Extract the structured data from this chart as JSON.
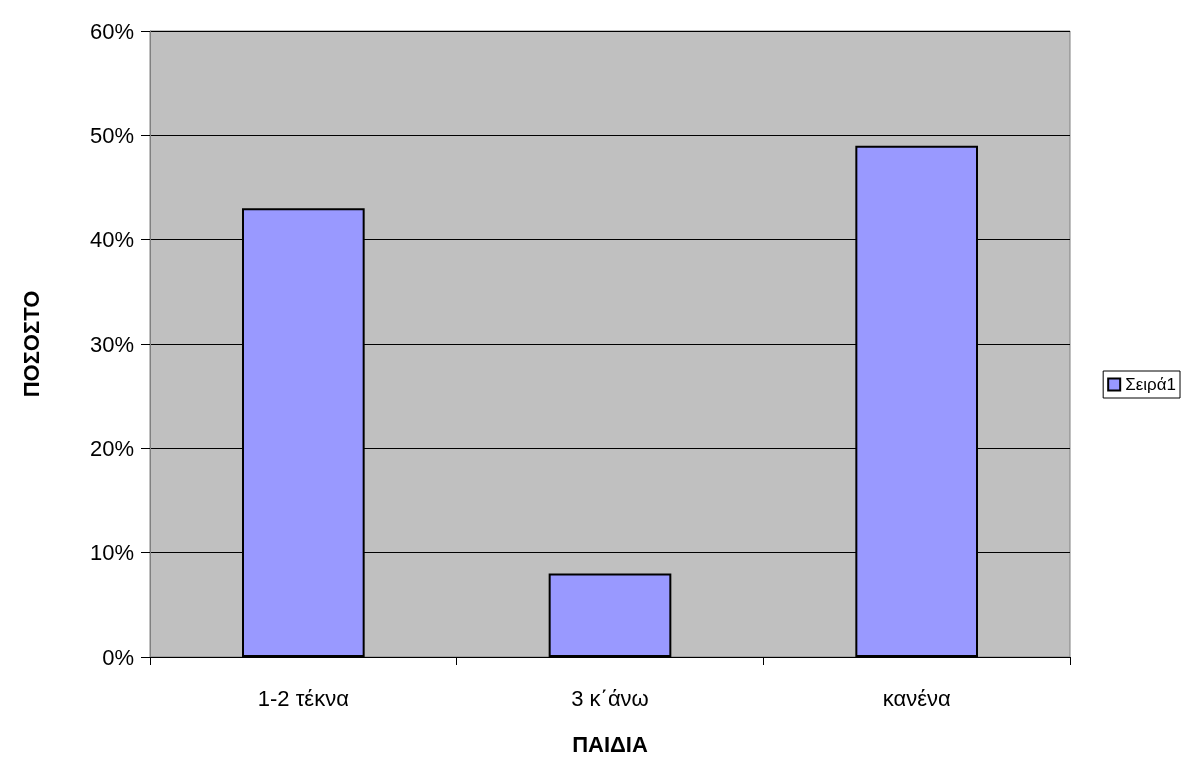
{
  "chart_data": {
    "type": "bar",
    "xlabel": "ΠΑΙΔΙΑ",
    "ylabel": "ΠΟΣΟΣΤΟ",
    "categories": [
      "1-2 τέκνα",
      "3 κ΄άνω",
      "κανένα"
    ],
    "series": [
      {
        "name": "Σειρά1",
        "color": "#9999ff",
        "values": [
          43,
          8,
          49
        ]
      }
    ],
    "ylim": [
      0,
      60
    ],
    "yticks": [
      {
        "value": 0,
        "label": "0%"
      },
      {
        "value": 10,
        "label": "10%"
      },
      {
        "value": 20,
        "label": "20%"
      },
      {
        "value": 30,
        "label": "30%"
      },
      {
        "value": 40,
        "label": "40%"
      },
      {
        "value": 50,
        "label": "50%"
      },
      {
        "value": 60,
        "label": "60%"
      }
    ],
    "grid": "y",
    "legend": "right"
  }
}
